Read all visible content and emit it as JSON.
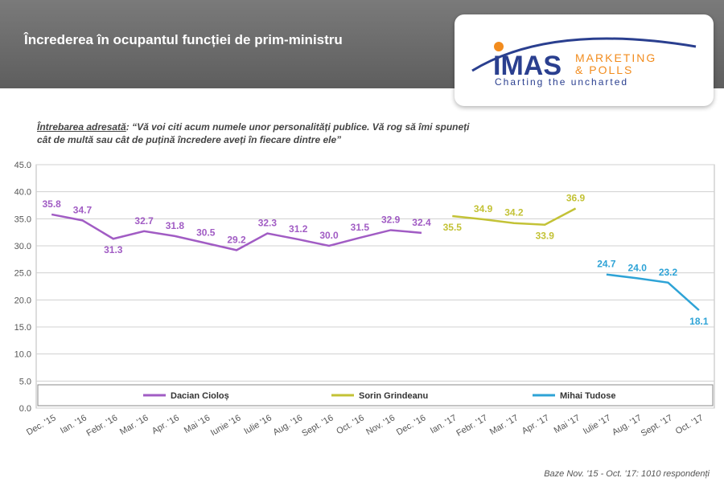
{
  "header": {
    "title": "Încrederea în ocupantul funcției de prim-ministru",
    "logo": {
      "brand": "IMAS",
      "line1": "MARKETING",
      "line2": "& POLLS",
      "tagline": "Charting the uncharted"
    }
  },
  "question": {
    "label": "Întrebarea adresată",
    "text": ":  “Vă voi citi acum numele unor personalități publice. Vă rog să îmi spuneți cât de multă sau cât de puțină încredere aveți în fiecare dintre ele”"
  },
  "footer": "Baze Nov. '15 - Oct. '17: 1010 respondenți",
  "chart_data": {
    "type": "line",
    "categories": [
      "Dec. '15",
      "Ian. '16",
      "Febr. '16",
      "Mar. '16",
      "Apr. '16",
      "Mai '16",
      "Iunie '16",
      "Iulie '16",
      "Aug. '16",
      "Sept. '16",
      "Oct. '16",
      "Nov. '16",
      "Dec. '16",
      "Ian. '17",
      "Febr. '17",
      "Mar. '17",
      "Apr. '17",
      "Mai '17",
      "Iulie '17",
      "Aug. '17",
      "Sept. '17",
      "Oct. '17"
    ],
    "series": [
      {
        "name": "Dacian Cioloș",
        "color": "#a15cc4",
        "values": [
          35.8,
          34.7,
          31.3,
          32.7,
          31.8,
          30.5,
          29.2,
          32.3,
          31.2,
          30.0,
          31.5,
          32.9,
          32.4,
          null,
          null,
          null,
          null,
          null,
          null,
          null,
          null,
          null
        ],
        "value_labels": [
          "35.8",
          "34.7",
          "31.3",
          "32.7",
          "31.8",
          "30.5",
          "29.2",
          "32.3",
          "31.2",
          "30.0",
          "31.5",
          "32.9",
          "32.4",
          null,
          null,
          null,
          null,
          null,
          null,
          null,
          null,
          null
        ]
      },
      {
        "name": "Sorin Grindeanu",
        "color": "#c3c236",
        "values": [
          null,
          null,
          null,
          null,
          null,
          null,
          null,
          null,
          null,
          null,
          null,
          null,
          null,
          35.5,
          34.9,
          34.2,
          33.9,
          36.9,
          null,
          null,
          null,
          null
        ],
        "value_labels": [
          null,
          null,
          null,
          null,
          null,
          null,
          null,
          null,
          null,
          null,
          null,
          null,
          null,
          "35.5",
          "34.9",
          "34.2",
          "33.9",
          "36.9",
          null,
          null,
          null,
          null
        ]
      },
      {
        "name": "Mihai Tudose",
        "color": "#2ea3d6",
        "values": [
          null,
          null,
          null,
          null,
          null,
          null,
          null,
          null,
          null,
          null,
          null,
          null,
          null,
          null,
          null,
          null,
          null,
          null,
          24.7,
          24.0,
          23.2,
          18.1
        ],
        "value_labels": [
          null,
          null,
          null,
          null,
          null,
          null,
          null,
          null,
          null,
          null,
          null,
          null,
          null,
          null,
          null,
          null,
          null,
          null,
          "24.7",
          "24.0",
          "23.2",
          "18.1"
        ]
      }
    ],
    "ylim": [
      0,
      45
    ],
    "yticks": [
      {
        "value": 0,
        "label": "0.0"
      },
      {
        "value": 5,
        "label": "5.0"
      },
      {
        "value": 10,
        "label": "10.0"
      },
      {
        "value": 15,
        "label": "15.0"
      },
      {
        "value": 20,
        "label": "20.0"
      },
      {
        "value": 25,
        "label": "25.0"
      },
      {
        "value": 30,
        "label": "30.0"
      },
      {
        "value": 35,
        "label": "35.0"
      },
      {
        "value": 40,
        "label": "40.0"
      },
      {
        "value": 45,
        "label": "45.0"
      }
    ],
    "grid": true,
    "legend": "bottom"
  }
}
